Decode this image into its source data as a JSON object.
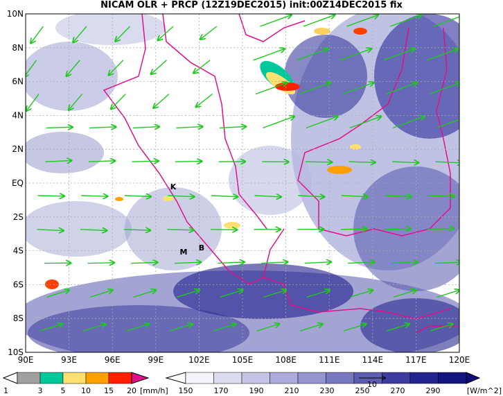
{
  "title": "NICAM OLR + PRCP (12Z19DEC2015) init:00Z14DEC2015 fix",
  "map": {
    "lat_labels": [
      "10N",
      "8N",
      "6N",
      "4N",
      "2N",
      "EQ",
      "2S",
      "4S",
      "6S",
      "8S",
      "10S"
    ],
    "lon_labels": [
      "90E",
      "93E",
      "96E",
      "99E",
      "102E",
      "105E",
      "108E",
      "111E",
      "114E",
      "117E",
      "120E"
    ],
    "markers": [
      {
        "label": "K"
      },
      {
        "label": "M"
      },
      {
        "label": "B"
      }
    ]
  },
  "precip_legend": {
    "labels": [
      "1",
      "3",
      "5",
      "10",
      "15",
      "20"
    ],
    "unit": "[mm/h]"
  },
  "olr_legend": {
    "labels": [
      "150",
      "170",
      "190",
      "210",
      "230",
      "250",
      "270",
      "290"
    ],
    "unit": "[W/m^2]"
  },
  "vector_reference": "10"
}
